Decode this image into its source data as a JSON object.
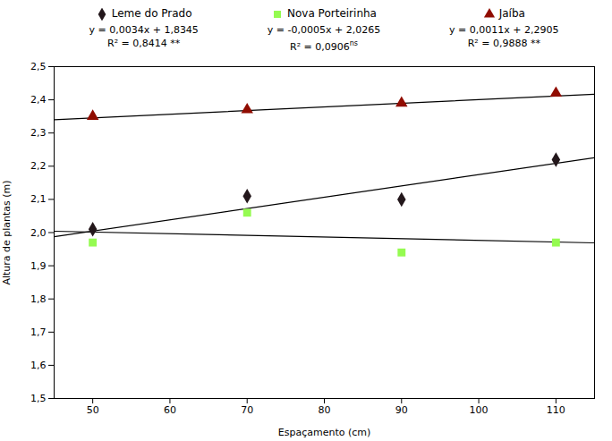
{
  "chart_data": {
    "type": "scatter",
    "xlabel": "Espaçamento (cm)",
    "ylabel": "Altura de plantas (m)",
    "xlim": [
      45,
      115
    ],
    "ylim": [
      1.5,
      2.5
    ],
    "xticks": [
      50,
      60,
      70,
      80,
      90,
      100,
      110
    ],
    "yticks": [
      {
        "value": 1.5,
        "label": "1,5"
      },
      {
        "value": 1.6,
        "label": "1,6"
      },
      {
        "value": 1.7,
        "label": "1,7"
      },
      {
        "value": 1.8,
        "label": "1,8"
      },
      {
        "value": 1.9,
        "label": "1,9"
      },
      {
        "value": 2.0,
        "label": "2,0"
      },
      {
        "value": 2.1,
        "label": "2,1"
      },
      {
        "value": 2.2,
        "label": "2,2"
      },
      {
        "value": 2.3,
        "label": "2,3"
      },
      {
        "value": 2.4,
        "label": "2,4"
      },
      {
        "value": 2.5,
        "label": "2,5"
      }
    ],
    "grid": false,
    "legend": "top",
    "x": [
      50,
      70,
      90,
      110
    ],
    "series": [
      {
        "name": "Leme do Prado",
        "marker": "diamond",
        "values": [
          2.01,
          2.11,
          2.1,
          2.22
        ],
        "fit_x": [
          45,
          115
        ],
        "fit_values": [
          1.9875,
          2.2255
        ],
        "annotations": [
          "y = 0,0034x + 1,8345",
          "R² = 0,8414 **"
        ]
      },
      {
        "name": "Nova Porteirinha",
        "marker": "square",
        "values": [
          1.97,
          2.06,
          1.94,
          1.97
        ],
        "fit_x": [
          45,
          115
        ],
        "fit_values": [
          2.004,
          1.969
        ],
        "annotations": [
          "y = -0,0005x + 2,0265",
          [
            "R² = 0,0906",
            "ns"
          ]
        ]
      },
      {
        "name": "Jaíba",
        "marker": "triangle",
        "values": [
          2.35,
          2.37,
          2.39,
          2.42
        ],
        "fit_x": [
          45,
          115
        ],
        "fit_values": [
          2.34,
          2.417
        ],
        "annotations": [
          "y = 0,0011x + 2,2905",
          "R² = 0,9888 **"
        ]
      }
    ]
  }
}
